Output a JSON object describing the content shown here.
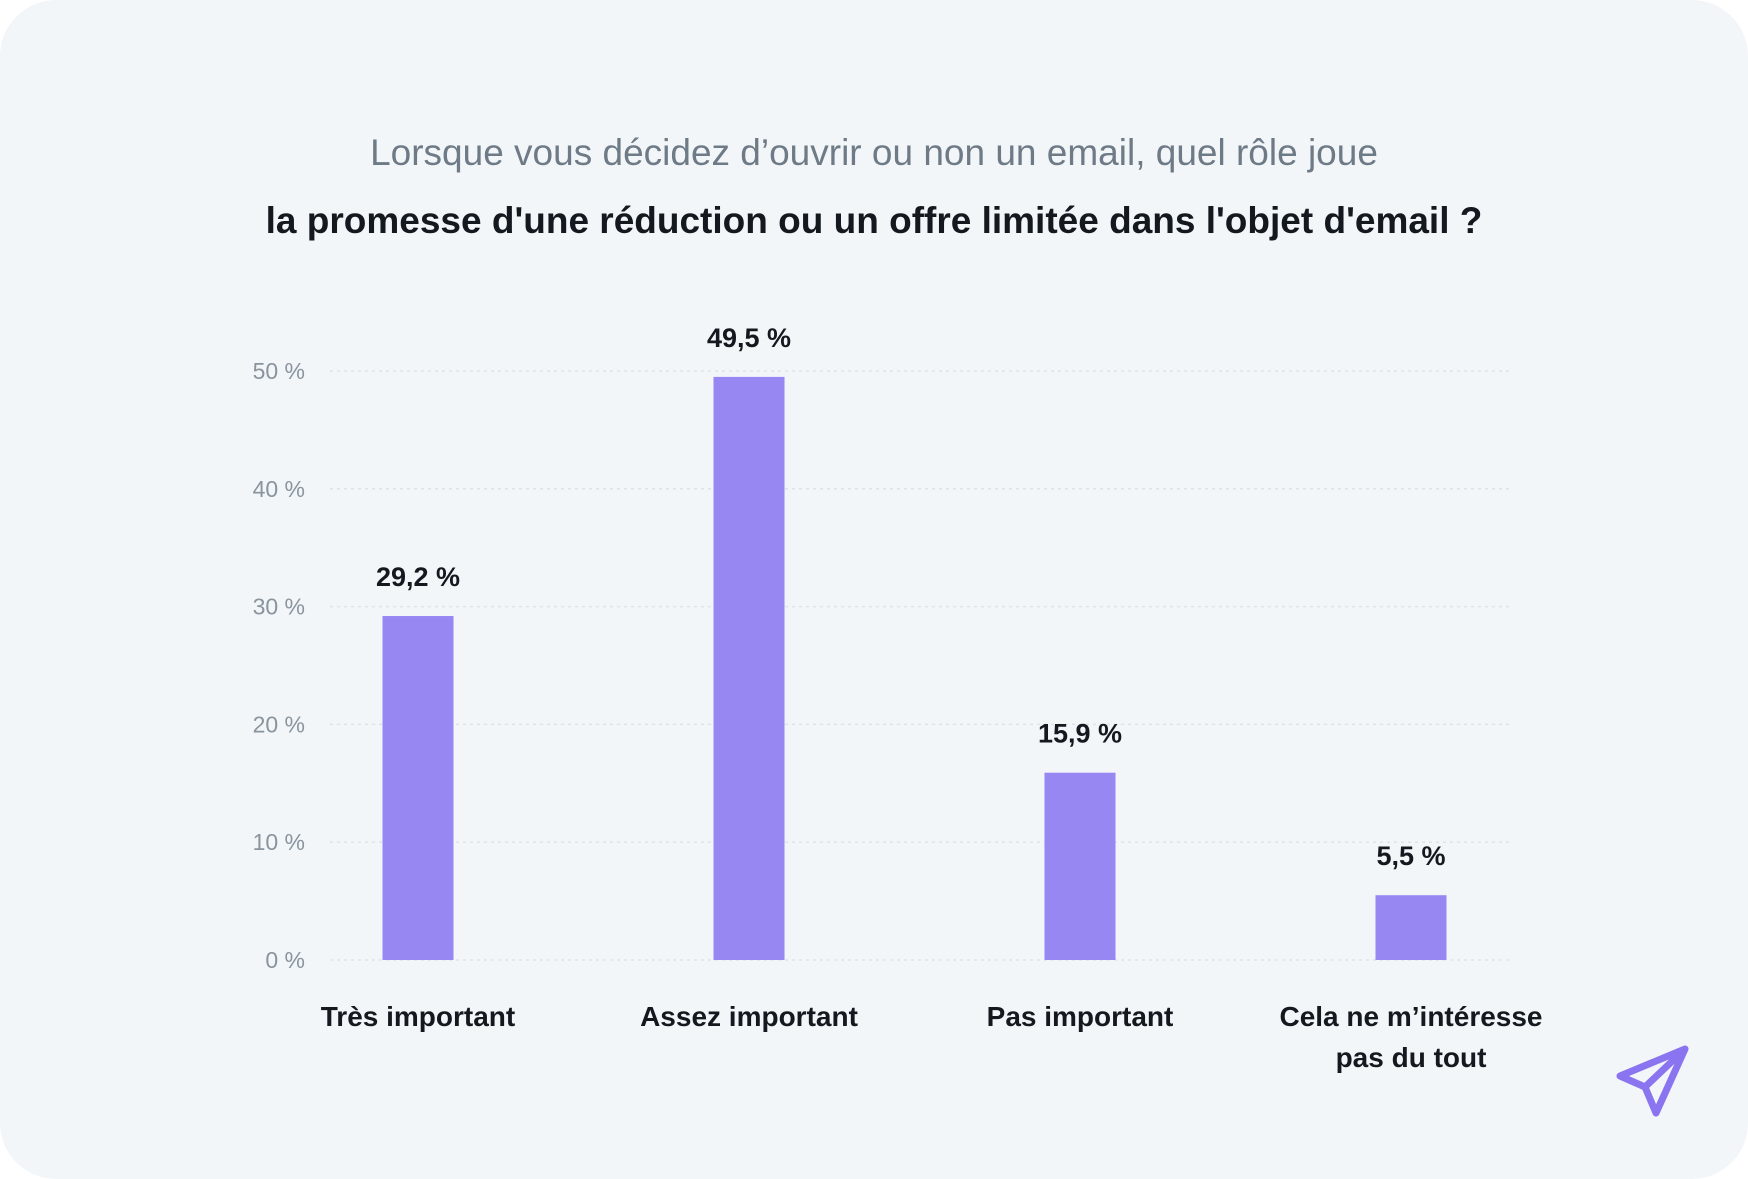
{
  "chart_data": {
    "type": "bar",
    "title": "la promesse d'une réduction ou un offre limitée dans l'objet d'email ?",
    "subtitle": "Lorsque vous décidez d’ouvrir ou non un email, quel rôle joue",
    "categories": [
      [
        "Très important"
      ],
      [
        "Assez important"
      ],
      [
        "Pas important"
      ],
      [
        "Cela ne m’intéresse",
        "pas du tout"
      ]
    ],
    "values": [
      29.2,
      49.5,
      15.9,
      5.5
    ],
    "data_labels": [
      "29,2 %",
      "49,5 %",
      "15,9 %",
      "5,5 %"
    ],
    "y_ticks": [
      0,
      10,
      20,
      30,
      40,
      50
    ],
    "y_tick_labels": [
      "0 %",
      "10 %",
      "20 %",
      "30 %",
      "40 %",
      "50 %"
    ],
    "ylim": [
      0,
      50
    ],
    "xlabel": "",
    "ylabel": "",
    "grid": true,
    "bar_color": "#9787f3"
  },
  "brand": {
    "logo_icon": "paper-plane-icon",
    "logo_color": "#8a74ef"
  }
}
